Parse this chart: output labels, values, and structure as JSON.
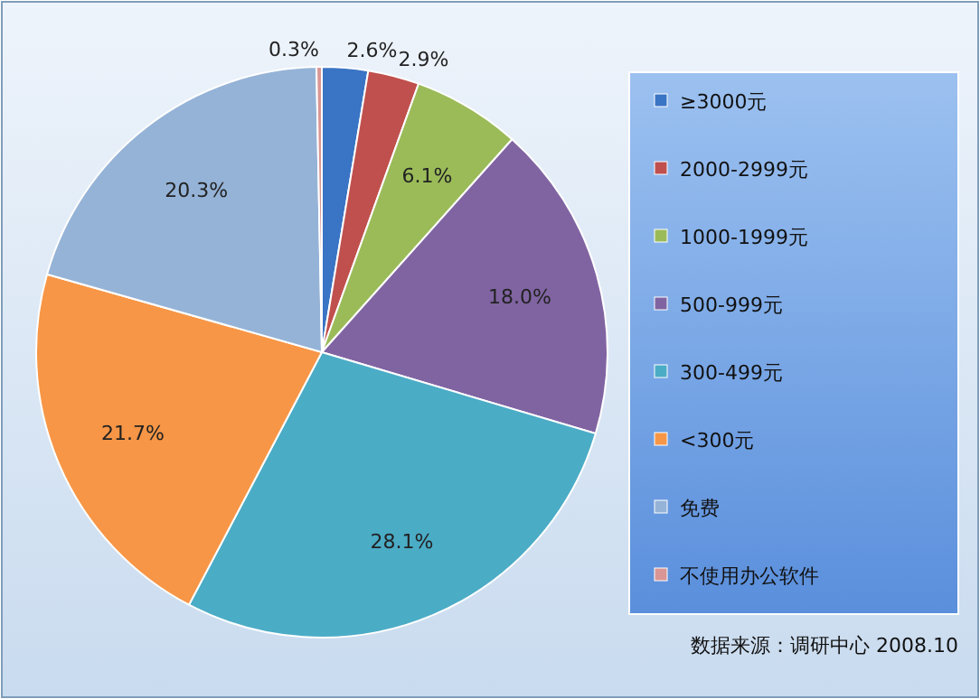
{
  "chart_data": {
    "type": "pie",
    "categories": [
      "≥3000元",
      "2000-2999元",
      "1000-1999元",
      "500-999元",
      "300-499元",
      "<300元",
      "免费",
      "不使用办公软件"
    ],
    "values": [
      2.6,
      2.9,
      6.1,
      18.0,
      28.1,
      21.7,
      20.3,
      0.3
    ],
    "colors": [
      "#3a74c4",
      "#c0504d",
      "#9bbb59",
      "#8064a2",
      "#4bacc6",
      "#f79646",
      "#95b3d7",
      "#d99694"
    ],
    "value_labels": [
      "2.6%",
      "2.9%",
      "6.1%",
      "18.0%",
      "28.1%",
      "21.7%",
      "20.3%",
      "0.3%"
    ],
    "legend": "right",
    "annotations": [
      "数据来源：调研中心 2008.10"
    ]
  }
}
